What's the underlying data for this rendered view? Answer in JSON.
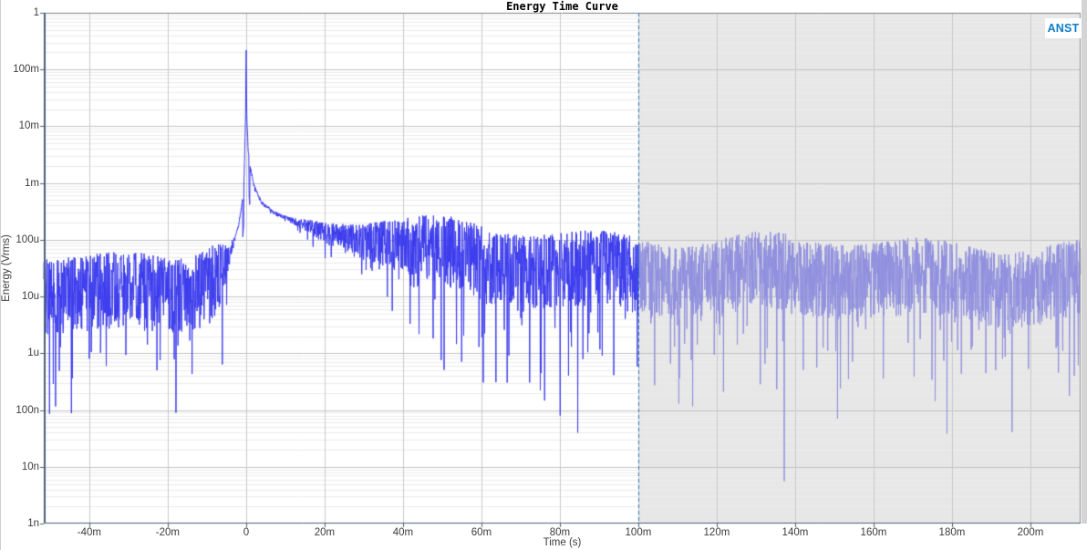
{
  "window": {
    "badge": "ANST",
    "badge_color": "#0d7cc7",
    "background": "#ffffff"
  },
  "chart_data": {
    "type": "line",
    "title": "Energy Time Curve",
    "xlabel": "Time (s)",
    "ylabel": "Energy (Vrms)",
    "y_scale": "log",
    "x_scale": "linear",
    "xlim": [
      -0.0516,
      0.2128
    ],
    "ylim": [
      1e-09,
      1
    ],
    "grid": {
      "major_color": "#c3c3c3",
      "minor_color": "#ececec",
      "vertical_color": "#cacaca",
      "minor_on": true
    },
    "frame": {
      "top_color": "#808080",
      "right_color": "#8f8f8f",
      "axis_color": "#4a6078"
    },
    "x_ticks": [
      {
        "value": -0.04,
        "label": "-40m"
      },
      {
        "value": -0.02,
        "label": "-20m"
      },
      {
        "value": 0.0,
        "label": "0"
      },
      {
        "value": 0.02,
        "label": "20m"
      },
      {
        "value": 0.04,
        "label": "40m"
      },
      {
        "value": 0.06,
        "label": "60m"
      },
      {
        "value": 0.08,
        "label": "80m"
      },
      {
        "value": 0.1,
        "label": "100m"
      },
      {
        "value": 0.12,
        "label": "120m"
      },
      {
        "value": 0.14,
        "label": "140m"
      },
      {
        "value": 0.16,
        "label": "160m"
      },
      {
        "value": 0.18,
        "label": "180m"
      },
      {
        "value": 0.2,
        "label": "200m"
      }
    ],
    "y_ticks": [
      {
        "value": 1,
        "label": "1"
      },
      {
        "value": 0.1,
        "label": "100m"
      },
      {
        "value": 0.01,
        "label": "10m"
      },
      {
        "value": 0.001,
        "label": "1m"
      },
      {
        "value": 0.0001,
        "label": "100u"
      },
      {
        "value": 1e-05,
        "label": "10u"
      },
      {
        "value": 1e-06,
        "label": "1u"
      },
      {
        "value": 1e-07,
        "label": "100n"
      },
      {
        "value": 1e-08,
        "label": "10n"
      },
      {
        "value": 1e-09,
        "label": "1n"
      }
    ],
    "cursor": {
      "time": 0.1,
      "style": "dashed",
      "color": "#2779b4"
    },
    "selection_region": {
      "start": 0.1,
      "end": 0.2128,
      "fill": "#e7e7e7"
    },
    "series": [
      {
        "name": "energy",
        "color": "#3c3cee",
        "faded_color": "#9090df",
        "peak": {
          "t": 0,
          "value": 0.22
        },
        "noise_floor_median": 2.2e-05,
        "noise_band_top": 8e-05,
        "deepest_spike": 4e-08,
        "envelope_keypoints": [
          [
            -0.0516,
            2.1e-05
          ],
          [
            -0.042,
            1.7e-05
          ],
          [
            -0.034,
            2e-05
          ],
          [
            -0.026,
            2.4e-05
          ],
          [
            -0.018,
            2.4e-05
          ],
          [
            -0.012,
            2.8e-05
          ],
          [
            -0.008,
            3.6e-05
          ],
          [
            -0.005,
            5e-05
          ],
          [
            -0.003,
            0.0001
          ],
          [
            -0.002,
            0.00017
          ],
          [
            -0.001,
            0.00045
          ],
          [
            -0.0005,
            0.0013
          ],
          [
            -0.00015,
            0.013
          ],
          [
            0,
            0.22
          ],
          [
            0.00015,
            0.018
          ],
          [
            0.0005,
            0.004
          ],
          [
            0.001,
            0.002
          ],
          [
            0.002,
            0.0009
          ],
          [
            0.004,
            0.00045
          ],
          [
            0.007,
            0.0003
          ],
          [
            0.012,
            0.00022
          ],
          [
            0.02,
            0.00015
          ],
          [
            0.03,
            0.00012
          ],
          [
            0.045,
            9e-05
          ],
          [
            0.06,
            7e-05
          ],
          [
            0.08,
            5.5e-05
          ],
          [
            0.1,
            4.2e-05
          ],
          [
            0.11,
            3.3e-05
          ],
          [
            0.2128,
            3.2e-05
          ]
        ]
      }
    ]
  }
}
